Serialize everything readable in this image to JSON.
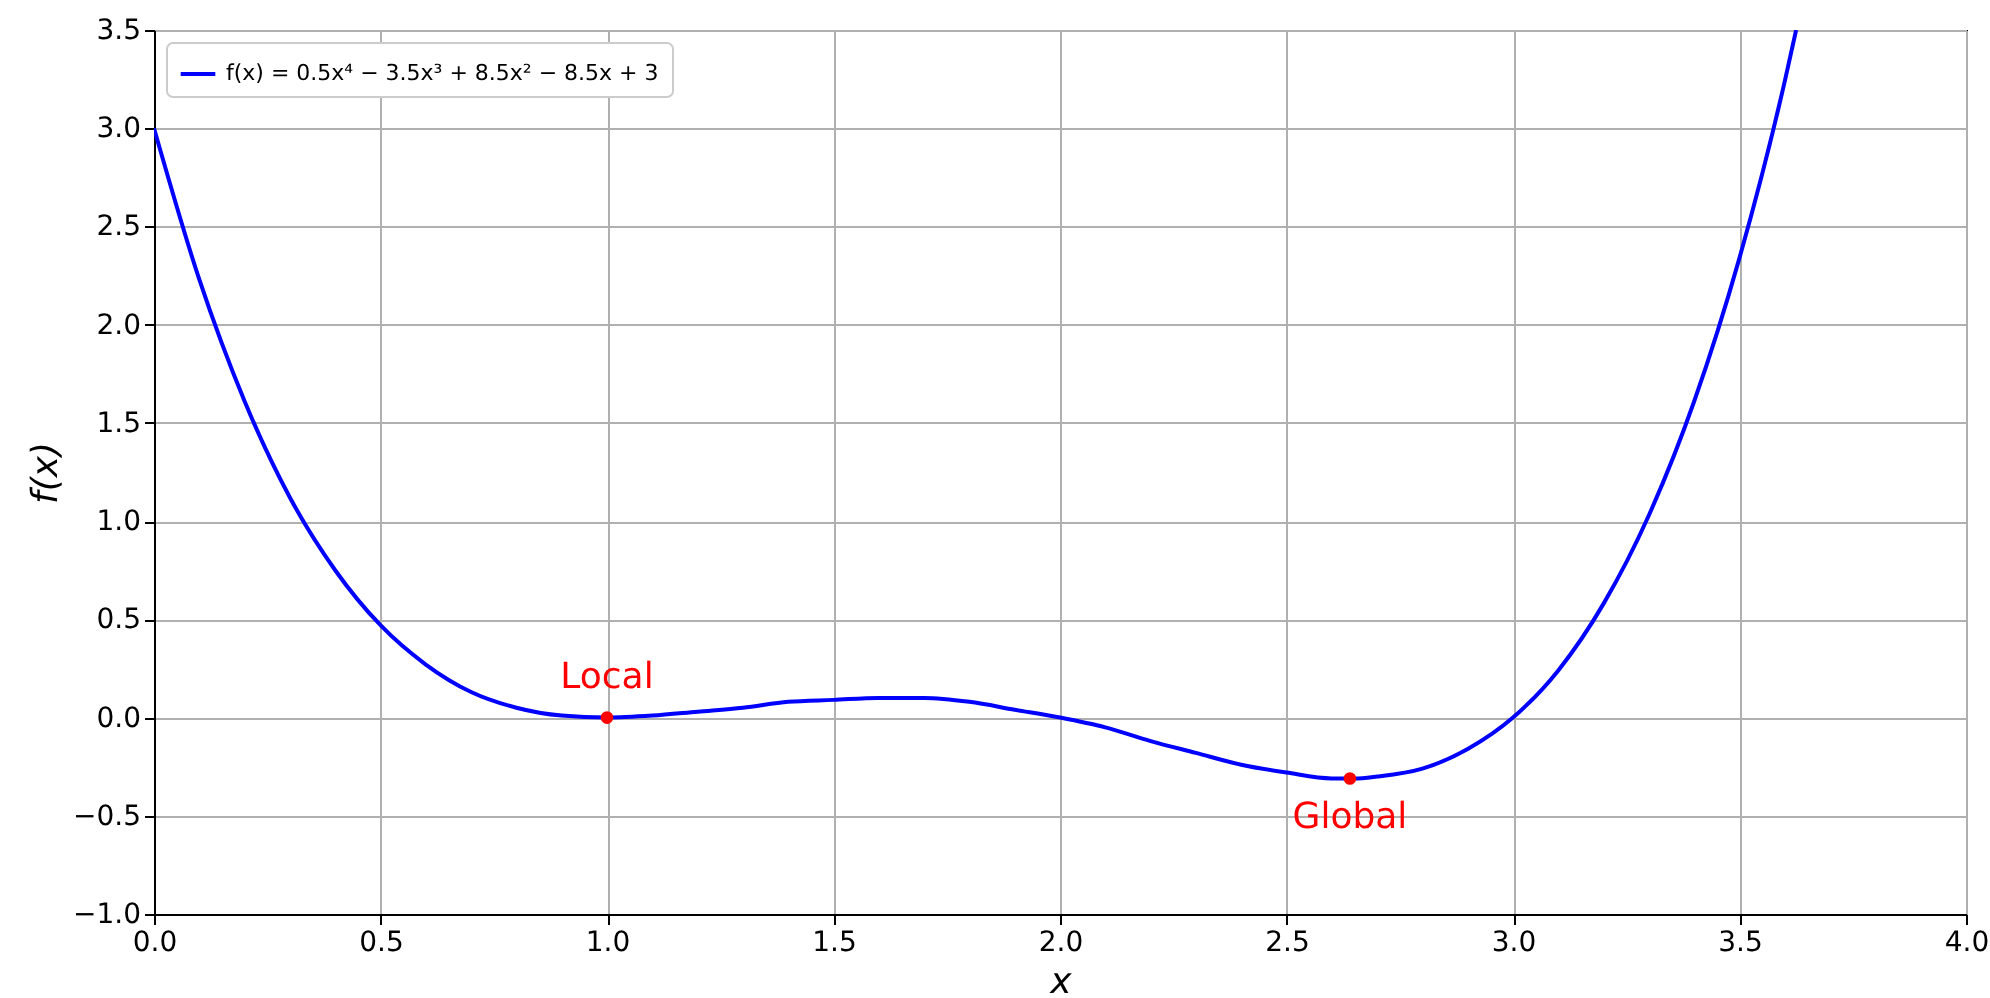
{
  "chart_data": {
    "type": "line",
    "xlabel": "x",
    "ylabel": "f(x)",
    "series": [
      {
        "name": "f(x) = 0.5x⁴ − 3.5x³ + 8.5x² − 8.5x + 3",
        "color": "#0000ff",
        "x": [
          0,
          0.1,
          0.2,
          0.3,
          0.4,
          0.5,
          0.6,
          0.7,
          0.8,
          0.9,
          1.0,
          1.1,
          1.2,
          1.3,
          1.4,
          1.5,
          1.6,
          1.7,
          1.8,
          1.9,
          2.0,
          2.1,
          2.2,
          2.3,
          2.4,
          2.5,
          2.6,
          2.65,
          2.7,
          2.8,
          2.9,
          3.0,
          3.1,
          3.2,
          3.3,
          3.4,
          3.5,
          3.6,
          3.625
        ],
        "values": [
          3.0,
          2.23,
          1.61,
          1.12,
          0.75,
          0.47,
          0.27,
          0.13,
          0.05,
          0.01,
          0.0,
          0.01,
          0.03,
          0.05,
          0.08,
          0.09,
          0.1,
          0.1,
          0.08,
          0.04,
          0.0,
          -0.05,
          -0.12,
          -0.18,
          -0.24,
          -0.28,
          -0.31,
          -0.31,
          -0.3,
          -0.26,
          -0.16,
          0.0,
          0.24,
          0.58,
          1.03,
          1.61,
          2.34,
          3.24,
          3.5
        ]
      },
      {
        "type": "scatter",
        "color": "#ff0000",
        "x": [
          1.0,
          2.64
        ],
        "values": [
          0.0,
          -0.31
        ]
      }
    ],
    "annotations": [
      {
        "text": "Local",
        "x": 1.0,
        "y": 0.0
      },
      {
        "text": "Global",
        "x": 2.64,
        "y": -0.31
      }
    ],
    "xlim": [
      0,
      4
    ],
    "ylim": [
      -1,
      3.5
    ],
    "xticks": [
      {
        "value": 0,
        "label": "0.0"
      },
      {
        "value": 0.5,
        "label": "0.5"
      },
      {
        "value": 1,
        "label": "1.0"
      },
      {
        "value": 1.5,
        "label": "1.5"
      },
      {
        "value": 2,
        "label": "2.0"
      },
      {
        "value": 2.5,
        "label": "2.5"
      },
      {
        "value": 3,
        "label": "3.0"
      },
      {
        "value": 3.5,
        "label": "3.5"
      },
      {
        "value": 4,
        "label": "4.0"
      }
    ],
    "yticks": [
      {
        "value": -1,
        "label": "−1.0"
      },
      {
        "value": -0.5,
        "label": "−0.5"
      },
      {
        "value": 0,
        "label": "0.0"
      },
      {
        "value": 0.5,
        "label": "0.5"
      },
      {
        "value": 1,
        "label": "1.0"
      },
      {
        "value": 1.5,
        "label": "1.5"
      },
      {
        "value": 2,
        "label": "2.0"
      },
      {
        "value": 2.5,
        "label": "2.5"
      },
      {
        "value": 3,
        "label": "3.0"
      },
      {
        "value": 3.5,
        "label": "3.5"
      }
    ],
    "grid": true,
    "legend": "top left",
    "line_style": "solid"
  }
}
